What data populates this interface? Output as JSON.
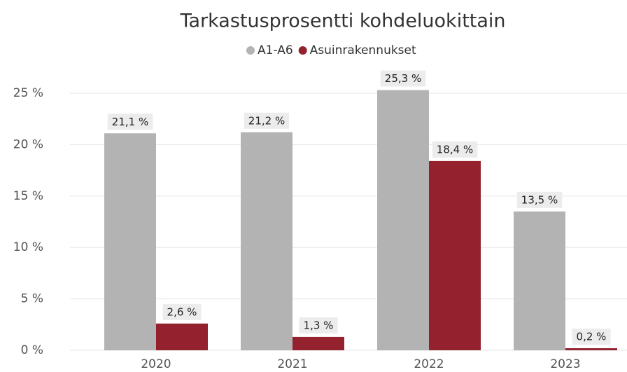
{
  "chart_data": {
    "type": "bar",
    "title": "Tarkastusprosentti kohdeluokittain",
    "categories": [
      "2020",
      "2021",
      "2022",
      "2023"
    ],
    "series": [
      {
        "name": "A1-A6",
        "color": "#b3b3b3",
        "values": [
          21.1,
          21.2,
          25.3,
          13.5
        ],
        "value_labels": [
          "21,1 %",
          "21,2 %",
          "25,3 %",
          "13,5 %"
        ]
      },
      {
        "name": "Asuinrakennukset",
        "color": "#93212e",
        "values": [
          2.6,
          1.3,
          18.4,
          0.2
        ],
        "value_labels": [
          "2,6 %",
          "1,3 %",
          "18,4 %",
          "0,2 %"
        ]
      }
    ],
    "ylim": [
      0,
      27
    ],
    "yticks": [
      {
        "value": 0,
        "label": "0 %"
      },
      {
        "value": 5,
        "label": "5 %"
      },
      {
        "value": 10,
        "label": "10 %"
      },
      {
        "value": 15,
        "label": "15 %"
      },
      {
        "value": 20,
        "label": "20 %"
      },
      {
        "value": 25,
        "label": "25 %"
      }
    ],
    "grid": true
  }
}
